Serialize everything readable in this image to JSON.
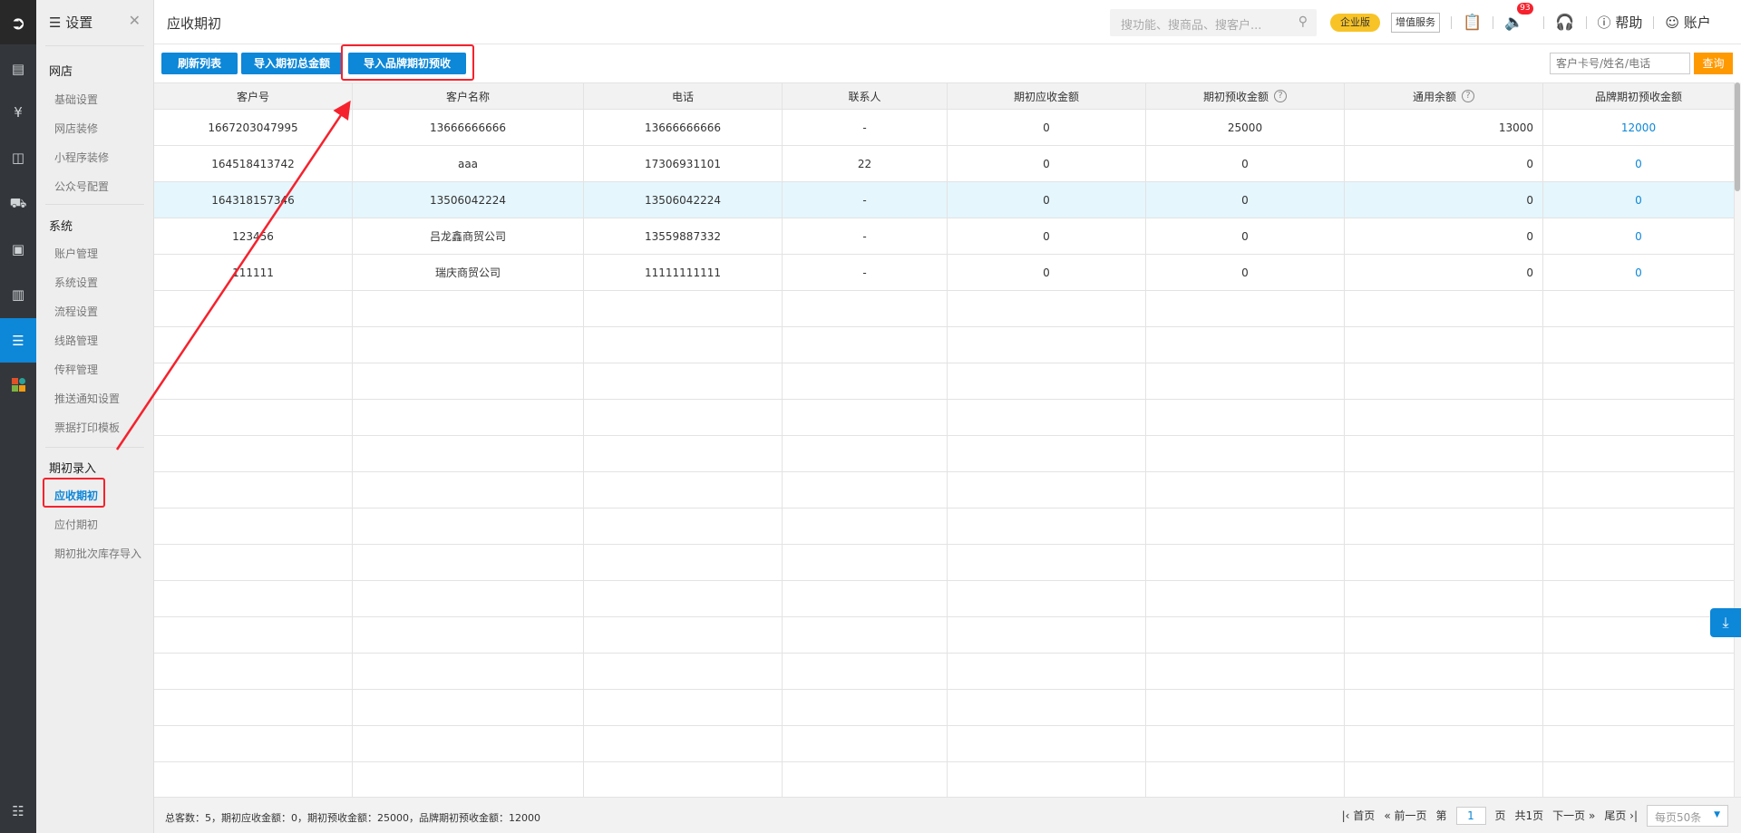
{
  "rail": {
    "icons": [
      "logo-icon",
      "document-icon",
      "money-icon",
      "box-icon",
      "truck-icon",
      "card-icon",
      "books-icon",
      "settings-sliders-icon",
      "apps-grid-icon",
      "menu-search-icon"
    ],
    "active": "settings-sliders-icon"
  },
  "sidebar": {
    "title": "设置",
    "groups": [
      {
        "label": "网店",
        "items": [
          "基础设置",
          "网店装修",
          "小程序装修",
          "公众号配置"
        ]
      },
      {
        "label": "系统",
        "items": [
          "账户管理",
          "系统设置",
          "流程设置",
          "线路管理",
          "传秤管理",
          "推送通知设置",
          "票据打印模板"
        ]
      },
      {
        "label": "期初录入",
        "items": [
          "应收期初",
          "应付期初",
          "期初批次库存导入"
        ]
      }
    ],
    "active_item": "应收期初"
  },
  "header": {
    "page_title": "应收期初",
    "search_placeholder": "搜功能、搜商品、搜客户...",
    "edition_badge": "企业版",
    "value_services": "增值服务",
    "notification_count": "93",
    "help": "帮助",
    "account": "账户"
  },
  "toolbar": {
    "refresh": "刷新列表",
    "import_total": "导入期初总金额",
    "import_brand": "导入品牌期初预收",
    "query_placeholder": "客户卡号/姓名/电话",
    "query": "查询"
  },
  "table": {
    "columns": [
      "客户号",
      "客户名称",
      "电话",
      "联系人",
      "期初应收金额",
      "期初预收金额",
      "通用余额",
      "品牌期初预收金额"
    ],
    "rows": [
      [
        "1667203047995",
        "13666666666",
        "13666666666",
        "-",
        "0",
        "25000",
        "13000",
        "12000"
      ],
      [
        "164518413742",
        "aaa",
        "17306931101",
        "22",
        "0",
        "0",
        "0",
        "0"
      ],
      [
        "164318157346",
        "13506042224",
        "13506042224",
        "-",
        "0",
        "0",
        "0",
        "0"
      ],
      [
        "123456",
        "吕龙鑫商贸公司",
        "13559887332",
        "-",
        "0",
        "0",
        "0",
        "0"
      ],
      [
        "111111",
        "瑞庆商贸公司",
        "11111111111",
        "-",
        "0",
        "0",
        "0",
        "0"
      ]
    ],
    "selected_row": 2
  },
  "footer": {
    "summary": "总客数：5，期初应收金额：0，期初预收金额：25000，品牌期初预收金额：12000",
    "first": "首页",
    "prev": "前一页",
    "page_prefix": "第",
    "page": "1",
    "page_suffix": "页",
    "total_pages": "共1页",
    "next": "下一页",
    "last": "尾页",
    "page_size": "每页50条"
  },
  "colors": {
    "primary": "#0d87d8",
    "query": "#ff9900",
    "highlight": "#f5222d",
    "selected_row": "#e5f6fd"
  }
}
